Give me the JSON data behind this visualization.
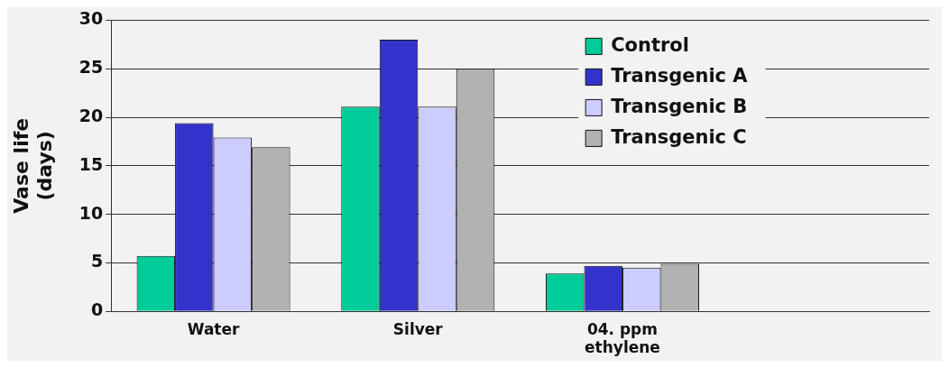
{
  "chart_data": {
    "type": "bar",
    "ylabel": "Vase life\n(days)",
    "categories": [
      "Water",
      "Silver",
      "04. ppm\nethylene",
      null
    ],
    "series": [
      {
        "name": "Control",
        "color": "#00cc99",
        "values": [
          5.7,
          21.1,
          3.9,
          null
        ]
      },
      {
        "name": "Transgenic A",
        "color": "#3333cc",
        "values": [
          19.4,
          28.0,
          4.7,
          null
        ]
      },
      {
        "name": "Transgenic B",
        "color": "#ccccff",
        "values": [
          17.9,
          21.1,
          4.5,
          null
        ]
      },
      {
        "name": "Transgenic C",
        "color": "#b2b2b2",
        "values": [
          16.9,
          25.0,
          4.9,
          null
        ]
      }
    ],
    "ylim": [
      0,
      30
    ],
    "yticks": [
      0,
      5,
      10,
      15,
      20,
      25,
      30
    ],
    "grid": "y",
    "legend": "top right"
  }
}
